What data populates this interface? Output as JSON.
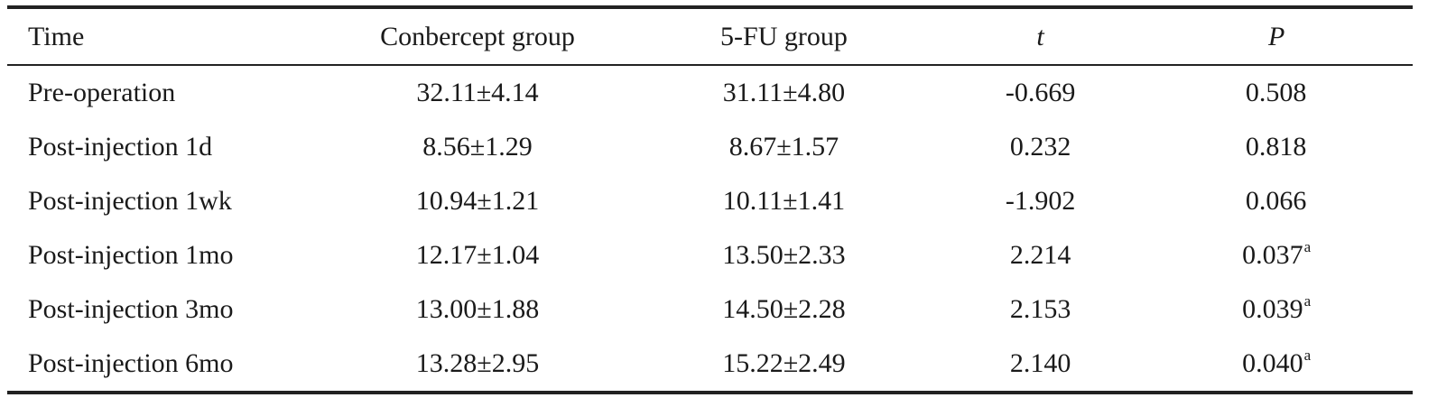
{
  "table": {
    "headers": {
      "time": "Time",
      "conbercept": "Conbercept group",
      "fu": "5-FU group",
      "t": "t",
      "p": "P"
    },
    "rows": [
      {
        "time": "Pre-operation",
        "conbercept": "32.11±4.14",
        "fu": "31.11±4.80",
        "t": "-0.669",
        "p": "0.508",
        "p_sup": ""
      },
      {
        "time": "Post-injection 1d",
        "conbercept": "8.56±1.29",
        "fu": "8.67±1.57",
        "t": "0.232",
        "p": "0.818",
        "p_sup": ""
      },
      {
        "time": "Post-injection 1wk",
        "conbercept": "10.94±1.21",
        "fu": "10.11±1.41",
        "t": "-1.902",
        "p": "0.066",
        "p_sup": ""
      },
      {
        "time": "Post-injection 1mo",
        "conbercept": "12.17±1.04",
        "fu": "13.50±2.33",
        "t": "2.214",
        "p": "0.037",
        "p_sup": "a"
      },
      {
        "time": "Post-injection 3mo",
        "conbercept": "13.00±1.88",
        "fu": "14.50±2.28",
        "t": "2.153",
        "p": "0.039",
        "p_sup": "a"
      },
      {
        "time": "Post-injection 6mo",
        "conbercept": "13.28±2.95",
        "fu": "15.22±2.49",
        "t": "2.140",
        "p": "0.040",
        "p_sup": "a"
      }
    ]
  }
}
